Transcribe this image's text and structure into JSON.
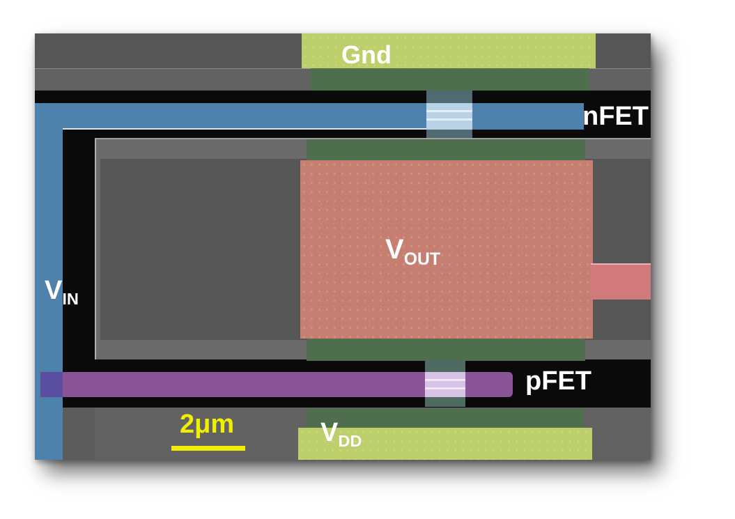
{
  "labels": {
    "gnd": "Gnd",
    "nfet": "nFET",
    "pfet": "pFET",
    "vout_main": "V",
    "vout_sub": "OUT",
    "vin_main": "V",
    "vin_sub": "IN",
    "vdd_main": "V",
    "vdd_sub": "DD"
  },
  "scale_bar": {
    "label": "2μm",
    "color": "#f2ee00"
  },
  "colors": {
    "gnd_pad": "#bccf6a",
    "vdd_pad": "#bccf6a",
    "vout_pad": "#c67e70",
    "vout_lead": "#d07a7e",
    "vin_trace": "#4e82ad",
    "pfet_gate": "#8a5597",
    "contact_green": "#4e6e4e",
    "channel": "#c9c1dd",
    "substrate": "#5c5c5c",
    "trench": "#0a0a0a",
    "mesa": "#6e6e6e"
  }
}
